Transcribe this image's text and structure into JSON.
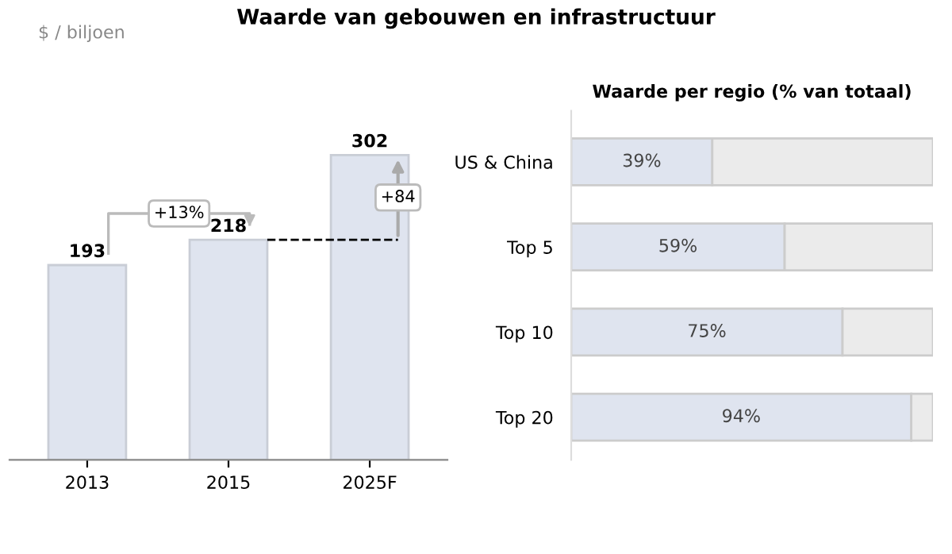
{
  "chart_data": [
    {
      "type": "bar",
      "title": "Waarde van gebouwen en infrastructuur",
      "ylabel": "$ / biljoen",
      "categories": [
        "2013",
        "2015",
        "2025F"
      ],
      "values": [
        193,
        218,
        302
      ],
      "color": "#dfe4ef",
      "data_labels": true,
      "tick_labels": "x",
      "ref_lines": [
        {
          "axis": "y",
          "value": 218,
          "color": "#000000",
          "line_style": "dashed"
        }
      ],
      "annotations": [
        "+13%",
        "+84"
      ]
    },
    {
      "type": "bar",
      "title": "Waarde per regio (% van totaal)",
      "orientation": "horizontal",
      "stacked": true,
      "tick_labels": "y",
      "categories": [
        "US & China",
        "Top 5",
        "Top 10",
        "Top 20"
      ],
      "series": [
        {
          "color": "#dfe4ef",
          "values": [
            39,
            59,
            75,
            94
          ],
          "value_labels": [
            "39%",
            "59%",
            "75%",
            "94%"
          ]
        },
        {
          "color": "#ebebeb",
          "values": [
            61,
            41,
            25,
            6
          ]
        }
      ]
    }
  ]
}
